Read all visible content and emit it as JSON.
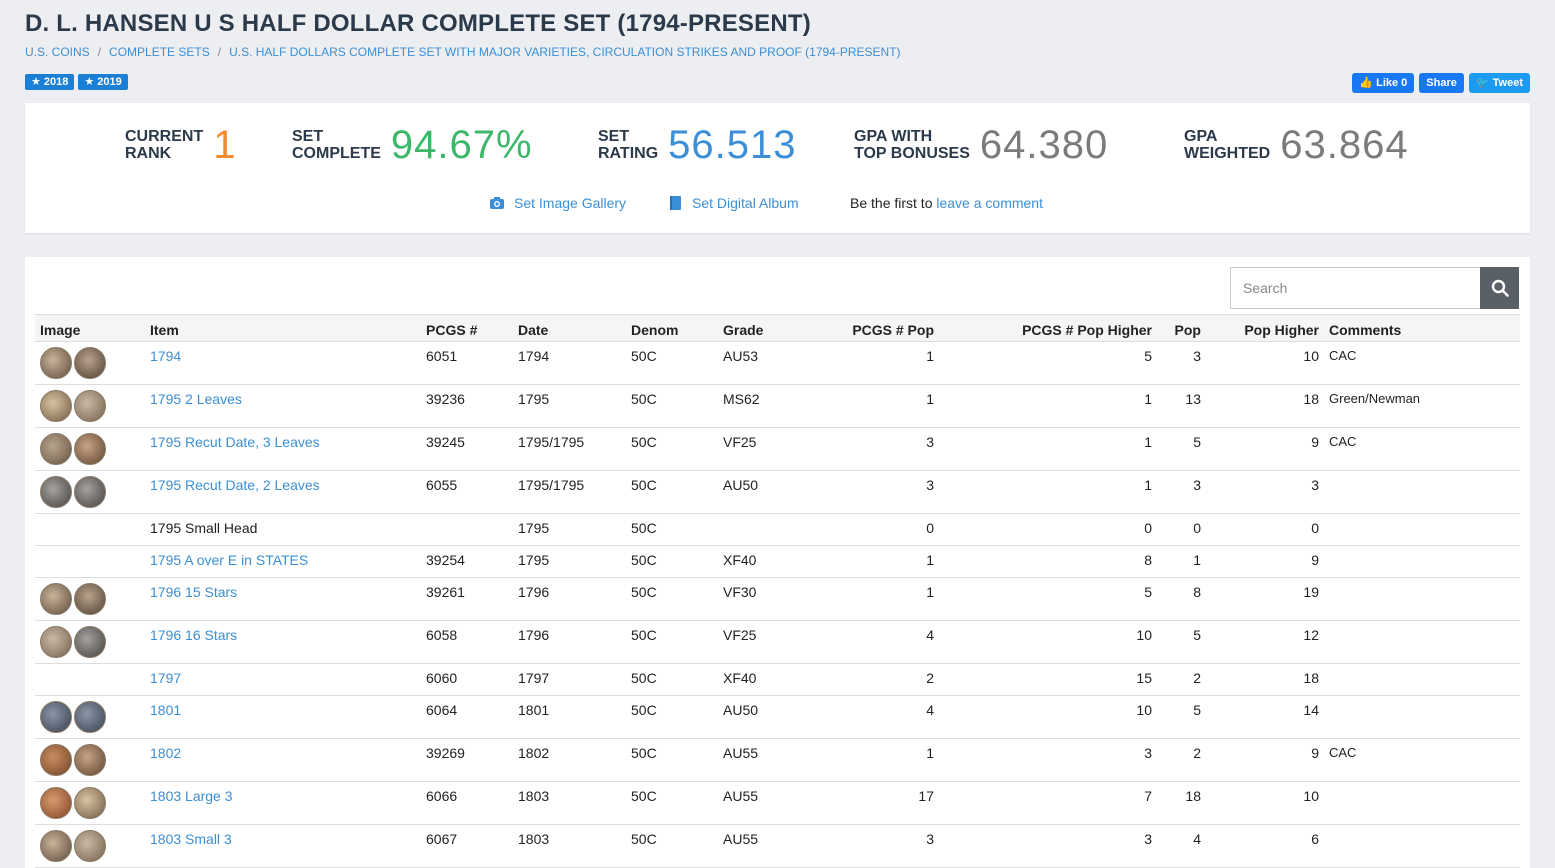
{
  "header": {
    "title": "D. L. HANSEN U S HALF DOLLAR COMPLETE SET (1794-PRESENT)",
    "breadcrumb": [
      "U.S. COINS",
      "COMPLETE SETS",
      "U.S. HALF DOLLARS COMPLETE SET WITH MAJOR VARIETIES, CIRCULATION STRIKES AND PROOF (1794-PRESENT)"
    ],
    "badges": [
      "★ 2018",
      "★ 2019"
    ]
  },
  "social": {
    "like_label": "Like 0",
    "share_label": "Share",
    "tweet_label": "Tweet"
  },
  "stats": {
    "rank_label": "CURRENT\nRANK",
    "rank_value": "1",
    "complete_label": "SET\nCOMPLETE",
    "complete_value": "94.67%",
    "rating_label": "SET\nRATING",
    "rating_value": "56.513",
    "gpa_bonus_label": "GPA WITH\nTOP BONUSES",
    "gpa_bonus_value": "64.380",
    "gpa_weighted_label": "GPA\nWEIGHTED",
    "gpa_weighted_value": "63.864"
  },
  "links": {
    "gallery": "Set Image Gallery",
    "album": "Set Digital Album",
    "comment_prefix": "Be the first to ",
    "comment_link": "leave a comment"
  },
  "search": {
    "placeholder": "Search"
  },
  "table": {
    "headers": {
      "image": "Image",
      "item": "Item",
      "pcgs": "PCGS #",
      "date": "Date",
      "denom": "Denom",
      "grade": "Grade",
      "pcgs_pop": "PCGS # Pop",
      "pcgs_pop_higher": "PCGS # Pop Higher",
      "pop": "Pop",
      "pop_higher": "Pop Higher",
      "comments": "Comments"
    },
    "rows": [
      {
        "item": "1794",
        "pcgs": "6051",
        "date": "1794",
        "denom": "50C",
        "grade": "AU53",
        "pcgs_pop": "1",
        "pcgs_pop_higher": "5",
        "pop": "3",
        "pop_higher": "10",
        "comments": "CAC"
      },
      {
        "item": "1795 2 Leaves",
        "pcgs": "39236",
        "date": "1795",
        "denom": "50C",
        "grade": "MS62",
        "pcgs_pop": "1",
        "pcgs_pop_higher": "1",
        "pop": "13",
        "pop_higher": "18",
        "comments": "Green/Newman"
      },
      {
        "item": "1795 Recut Date, 3 Leaves",
        "pcgs": "39245",
        "date": "1795/1795",
        "denom": "50C",
        "grade": "VF25",
        "pcgs_pop": "3",
        "pcgs_pop_higher": "1",
        "pop": "5",
        "pop_higher": "9",
        "comments": "CAC"
      },
      {
        "item": "1795 Recut Date, 2 Leaves",
        "pcgs": "6055",
        "date": "1795/1795",
        "denom": "50C",
        "grade": "AU50",
        "pcgs_pop": "3",
        "pcgs_pop_higher": "1",
        "pop": "3",
        "pop_higher": "3",
        "comments": ""
      },
      {
        "item": "1795 Small Head",
        "pcgs": "",
        "date": "1795",
        "denom": "50C",
        "grade": "",
        "pcgs_pop": "0",
        "pcgs_pop_higher": "0",
        "pop": "0",
        "pop_higher": "0",
        "comments": ""
      },
      {
        "item": "1795 A over E in STATES",
        "pcgs": "39254",
        "date": "1795",
        "denom": "50C",
        "grade": "XF40",
        "pcgs_pop": "1",
        "pcgs_pop_higher": "8",
        "pop": "1",
        "pop_higher": "9",
        "comments": ""
      },
      {
        "item": "1796 15 Stars",
        "pcgs": "39261",
        "date": "1796",
        "denom": "50C",
        "grade": "VF30",
        "pcgs_pop": "1",
        "pcgs_pop_higher": "5",
        "pop": "8",
        "pop_higher": "19",
        "comments": ""
      },
      {
        "item": "1796 16 Stars",
        "pcgs": "6058",
        "date": "1796",
        "denom": "50C",
        "grade": "VF25",
        "pcgs_pop": "4",
        "pcgs_pop_higher": "10",
        "pop": "5",
        "pop_higher": "12",
        "comments": ""
      },
      {
        "item": "1797",
        "pcgs": "6060",
        "date": "1797",
        "denom": "50C",
        "grade": "XF40",
        "pcgs_pop": "2",
        "pcgs_pop_higher": "15",
        "pop": "2",
        "pop_higher": "18",
        "comments": ""
      },
      {
        "item": "1801",
        "pcgs": "6064",
        "date": "1801",
        "denom": "50C",
        "grade": "AU50",
        "pcgs_pop": "4",
        "pcgs_pop_higher": "10",
        "pop": "5",
        "pop_higher": "14",
        "comments": ""
      },
      {
        "item": "1802",
        "pcgs": "39269",
        "date": "1802",
        "denom": "50C",
        "grade": "AU55",
        "pcgs_pop": "1",
        "pcgs_pop_higher": "3",
        "pop": "2",
        "pop_higher": "9",
        "comments": "CAC"
      },
      {
        "item": "1803 Large 3",
        "pcgs": "6066",
        "date": "1803",
        "denom": "50C",
        "grade": "AU55",
        "pcgs_pop": "17",
        "pcgs_pop_higher": "7",
        "pop": "18",
        "pop_higher": "10",
        "comments": ""
      },
      {
        "item": "1803 Small 3",
        "pcgs": "6067",
        "date": "1803",
        "denom": "50C",
        "grade": "AU55",
        "pcgs_pop": "3",
        "pcgs_pop_higher": "3",
        "pop": "4",
        "pop_higher": "6",
        "comments": ""
      }
    ]
  }
}
